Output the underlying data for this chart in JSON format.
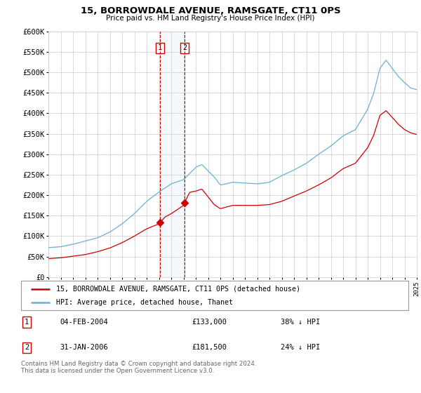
{
  "title": "15, BORROWDALE AVENUE, RAMSGATE, CT11 0PS",
  "subtitle": "Price paid vs. HM Land Registry's House Price Index (HPI)",
  "ylabel_ticks": [
    "£0",
    "£50K",
    "£100K",
    "£150K",
    "£200K",
    "£250K",
    "£300K",
    "£350K",
    "£400K",
    "£450K",
    "£500K",
    "£550K",
    "£600K"
  ],
  "ylim": [
    0,
    600000
  ],
  "ytick_values": [
    0,
    50000,
    100000,
    150000,
    200000,
    250000,
    300000,
    350000,
    400000,
    450000,
    500000,
    550000,
    600000
  ],
  "hpi_color": "#6baed6",
  "price_color": "#cc0000",
  "sale1_x": 2004.09,
  "sale1_price": 133000,
  "sale2_x": 2006.08,
  "sale2_price": 181500,
  "legend_line1": "15, BORROWDALE AVENUE, RAMSGATE, CT11 0PS (detached house)",
  "legend_line2": "HPI: Average price, detached house, Thanet",
  "footnote": "Contains HM Land Registry data © Crown copyright and database right 2024.\nThis data is licensed under the Open Government Licence v3.0.",
  "xmin": 1995,
  "xmax": 2025,
  "background_color": "#ffffff",
  "grid_color": "#cccccc",
  "hpi_key_t": [
    1995.0,
    1996.0,
    1997.0,
    1998.0,
    1999.0,
    2000.0,
    2001.0,
    2002.0,
    2003.0,
    2004.0,
    2004.5,
    2005.0,
    2006.0,
    2007.0,
    2007.5,
    2008.5,
    2009.0,
    2010.0,
    2011.0,
    2012.0,
    2013.0,
    2014.0,
    2015.0,
    2016.0,
    2017.0,
    2018.0,
    2019.0,
    2020.0,
    2021.0,
    2021.5,
    2022.0,
    2022.5,
    2023.0,
    2023.5,
    2024.0,
    2024.5,
    2025.0
  ],
  "hpi_key_v": [
    72000,
    74000,
    80000,
    88000,
    96000,
    110000,
    130000,
    155000,
    185000,
    208000,
    218000,
    228000,
    238000,
    268000,
    275000,
    245000,
    225000,
    232000,
    230000,
    228000,
    232000,
    248000,
    262000,
    278000,
    300000,
    320000,
    345000,
    360000,
    410000,
    450000,
    510000,
    530000,
    510000,
    490000,
    475000,
    462000,
    458000
  ],
  "price_key_t": [
    1995.0,
    1996.0,
    1997.0,
    1998.0,
    1999.0,
    2000.0,
    2001.0,
    2002.0,
    2003.0,
    2004.0,
    2004.09,
    2004.5,
    2005.0,
    2006.0,
    2006.08,
    2006.5,
    2007.0,
    2007.5,
    2008.0,
    2008.5,
    2009.0,
    2010.0,
    2011.0,
    2012.0,
    2013.0,
    2014.0,
    2015.0,
    2016.0,
    2017.0,
    2018.0,
    2019.0,
    2020.0,
    2021.0,
    2021.5,
    2022.0,
    2022.5,
    2023.0,
    2023.5,
    2024.0,
    2024.5,
    2025.0
  ],
  "price_key_v": [
    45000,
    47000,
    51000,
    55000,
    62000,
    71000,
    84000,
    100000,
    118000,
    130000,
    133000,
    147000,
    155000,
    175000,
    181500,
    207000,
    210000,
    215000,
    196000,
    177000,
    167000,
    175000,
    175000,
    175000,
    177000,
    185000,
    198000,
    210000,
    225000,
    242000,
    265000,
    278000,
    316000,
    347000,
    395000,
    406000,
    390000,
    373000,
    360000,
    352000,
    348000
  ]
}
